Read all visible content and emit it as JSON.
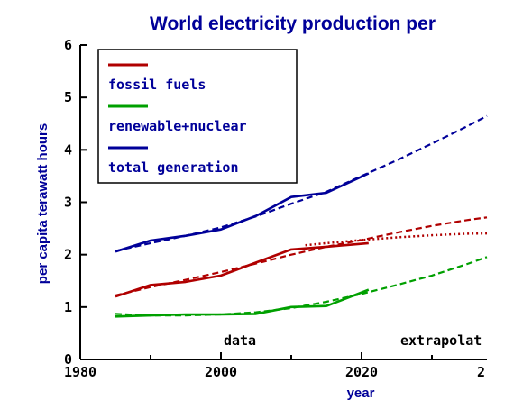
{
  "chart_data": {
    "type": "line",
    "title": "World electricity production per",
    "xlabel": "year",
    "ylabel": "per capita terawatt hours",
    "xlim": [
      1980,
      2040
    ],
    "ylim": [
      0,
      6
    ],
    "x_ticks": [
      1980,
      2000,
      2020
    ],
    "x_tick_labels": [
      "1980",
      "2000",
      "2020"
    ],
    "x_tick_partial_label": "2",
    "y_ticks": [
      0,
      1,
      2,
      3,
      4,
      5,
      6
    ],
    "y_tick_labels": [
      "0",
      "1",
      "2",
      "3",
      "4",
      "5",
      "6"
    ],
    "grid": false,
    "legend_position": "top-left",
    "annotations": {
      "data": "data",
      "extrapolation": "extrapolat"
    },
    "series": [
      {
        "name": "fossil fuels",
        "color": "#b00000",
        "data": {
          "x": [
            1985,
            1990,
            1995,
            2000,
            2005,
            2010,
            2015,
            2021
          ],
          "y": [
            1.2,
            1.42,
            1.48,
            1.6,
            1.85,
            2.1,
            2.15,
            2.22
          ]
        },
        "fit": {
          "x": [
            1985,
            1990,
            1995,
            2000,
            2005,
            2010,
            2015,
            2020,
            2025,
            2030,
            2035,
            2040
          ],
          "y": [
            1.22,
            1.38,
            1.52,
            1.67,
            1.83,
            2.0,
            2.15,
            2.28,
            2.42,
            2.55,
            2.66,
            2.75
          ]
        },
        "alt_fit": {
          "x": [
            2012,
            2015,
            2020,
            2025,
            2030,
            2035,
            2040
          ],
          "y": [
            2.18,
            2.22,
            2.28,
            2.33,
            2.37,
            2.4,
            2.41
          ]
        }
      },
      {
        "name": "renewable+nuclear",
        "color": "#00a000",
        "data": {
          "x": [
            1985,
            1990,
            1995,
            2000,
            2005,
            2010,
            2015,
            2021
          ],
          "y": [
            0.82,
            0.84,
            0.86,
            0.86,
            0.87,
            1.0,
            1.02,
            1.33
          ]
        },
        "fit": {
          "x": [
            1985,
            1990,
            1995,
            2000,
            2005,
            2010,
            2015,
            2020,
            2025,
            2030,
            2035,
            2040
          ],
          "y": [
            0.87,
            0.84,
            0.84,
            0.86,
            0.9,
            0.98,
            1.1,
            1.25,
            1.42,
            1.6,
            1.82,
            2.06
          ]
        }
      },
      {
        "name": "total generation",
        "color": "#000099",
        "data": {
          "x": [
            1985,
            1990,
            1995,
            2000,
            2005,
            2010,
            2015,
            2021
          ],
          "y": [
            2.06,
            2.27,
            2.36,
            2.48,
            2.74,
            3.1,
            3.18,
            3.55
          ]
        },
        "fit": {
          "x": [
            1985,
            1990,
            1995,
            2000,
            2005,
            2010,
            2015,
            2020,
            2025,
            2030,
            2035,
            2040
          ],
          "y": [
            2.07,
            2.22,
            2.36,
            2.52,
            2.73,
            2.97,
            3.2,
            3.5,
            3.8,
            4.12,
            4.45,
            4.8
          ]
        }
      }
    ]
  }
}
